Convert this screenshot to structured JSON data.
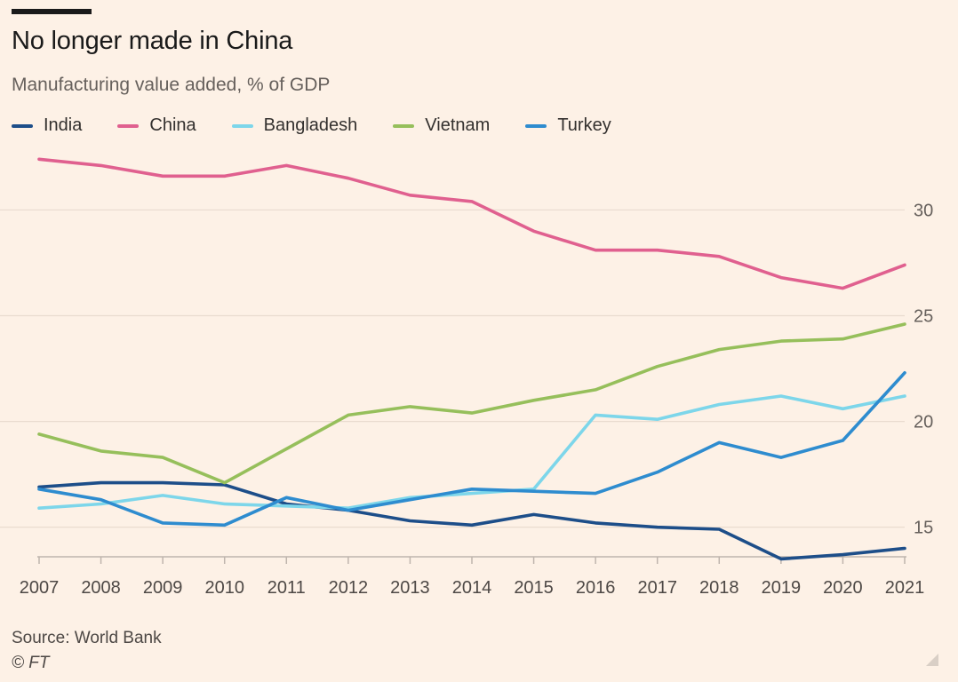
{
  "header": {
    "title": "No longer made in China",
    "subtitle": "Manufacturing value added, % of GDP"
  },
  "footer": {
    "source": "Source: World Bank",
    "credit": "© FT"
  },
  "chart_data": {
    "type": "line",
    "title": "No longer made in China",
    "subtitle": "Manufacturing value added, % of GDP",
    "xlabel": "",
    "ylabel": "",
    "x": [
      2007,
      2008,
      2009,
      2010,
      2011,
      2012,
      2013,
      2014,
      2015,
      2016,
      2017,
      2018,
      2019,
      2020,
      2021
    ],
    "xticks": [
      "2007",
      "2008",
      "2009",
      "2010",
      "2011",
      "2012",
      "2013",
      "2014",
      "2015",
      "2016",
      "2017",
      "2018",
      "2019",
      "2020",
      "2021"
    ],
    "yticks": [
      "15",
      "20",
      "25",
      "30"
    ],
    "ylim": [
      13.6,
      33
    ],
    "grid": "horizontal",
    "y_axis_side": "right",
    "legend_position": "top-left",
    "series": [
      {
        "name": "India",
        "color": "#1d4e89",
        "values": [
          16.9,
          17.1,
          17.1,
          17.0,
          16.1,
          15.8,
          15.3,
          15.1,
          15.6,
          15.2,
          15.0,
          14.9,
          13.5,
          13.7,
          14.0
        ]
      },
      {
        "name": "China",
        "color": "#e0608f",
        "values": [
          32.4,
          32.1,
          31.6,
          31.6,
          32.1,
          31.5,
          30.7,
          30.4,
          29.0,
          28.1,
          28.1,
          27.8,
          26.8,
          26.3,
          27.4
        ]
      },
      {
        "name": "Bangladesh",
        "color": "#7dd6ea",
        "values": [
          15.9,
          16.1,
          16.5,
          16.1,
          16.0,
          15.9,
          16.4,
          16.6,
          16.8,
          20.3,
          20.1,
          20.8,
          21.2,
          20.6,
          21.2
        ]
      },
      {
        "name": "Vietnam",
        "color": "#96bf5b",
        "values": [
          19.4,
          18.6,
          18.3,
          17.1,
          18.7,
          20.3,
          20.7,
          20.4,
          21.0,
          21.5,
          22.6,
          23.4,
          23.8,
          23.9,
          24.6
        ]
      },
      {
        "name": "Turkey",
        "color": "#2e8ccf",
        "values": [
          16.8,
          16.3,
          15.2,
          15.1,
          16.4,
          15.8,
          16.3,
          16.8,
          16.7,
          16.6,
          17.6,
          19.0,
          18.3,
          19.1,
          22.3
        ]
      }
    ]
  }
}
